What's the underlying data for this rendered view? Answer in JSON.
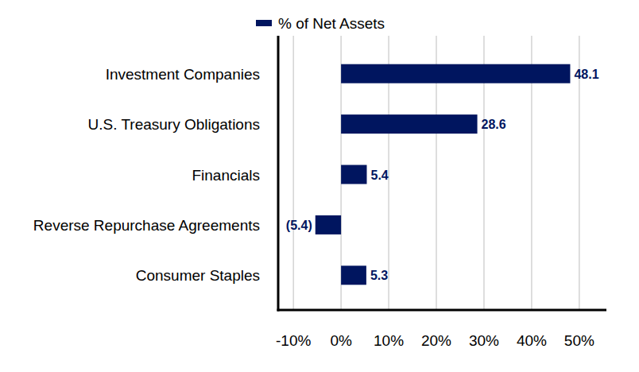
{
  "chart_data": {
    "type": "bar",
    "orientation": "horizontal",
    "categories": [
      "Investment Companies",
      "U.S. Treasury Obligations",
      "Financials",
      "Reverse Repurchase Agreements",
      "Consumer Staples"
    ],
    "series": [
      {
        "name": "% of Net Assets",
        "color": "#00155f",
        "values": [
          48.1,
          28.6,
          5.4,
          -5.4,
          5.3
        ],
        "value_labels": [
          "48.1",
          "28.6",
          "5.4",
          "(5.4)",
          "5.3"
        ]
      }
    ],
    "xlim": [
      -13.2,
      55.7
    ],
    "xticks": [
      {
        "value": -10,
        "label": "-10%"
      },
      {
        "value": 0,
        "label": "0%"
      },
      {
        "value": 10,
        "label": "10%"
      },
      {
        "value": 20,
        "label": "20%"
      },
      {
        "value": 30,
        "label": "30%"
      },
      {
        "value": 40,
        "label": "40%"
      },
      {
        "value": 50,
        "label": "50%"
      }
    ],
    "grid": true,
    "data_labels": true,
    "legend": "top"
  }
}
